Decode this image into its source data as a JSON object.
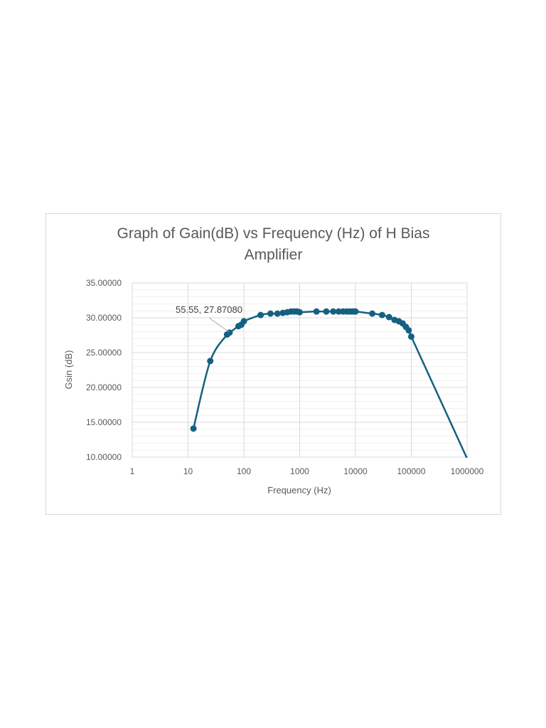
{
  "chart_data": {
    "type": "scatter",
    "title": "Graph of Gain(dB) vs Frequency (Hz) of H Bias Amplifier",
    "title_lines": [
      "Graph of Gain(dB) vs Frequency (Hz) of H Bias",
      "Amplifier"
    ],
    "xlabel": "Frequency (Hz)",
    "ylabel": "Gsin (dB)",
    "x_scale": "log",
    "xlim": [
      1,
      1000000
    ],
    "ylim": [
      10,
      35
    ],
    "x_ticks": [
      "1",
      "10",
      "100",
      "1000",
      "10000",
      "100000",
      "1000000"
    ],
    "y_ticks": [
      "10.00000",
      "15.00000",
      "20.00000",
      "25.00000",
      "30.00000",
      "35.00000"
    ],
    "grid": {
      "major": true,
      "minor_y_step": 1
    },
    "legend": null,
    "series": [
      {
        "name": "Gsin (dB)",
        "color": "#156082",
        "style": "smooth line with markers",
        "x": [
          12.5,
          25,
          50,
          55.55,
          80,
          90,
          100,
          200,
          300,
          400,
          500,
          600,
          700,
          800,
          900,
          1000,
          2000,
          3000,
          4000,
          5000,
          6000,
          7000,
          8000,
          9000,
          10000,
          20000,
          30000,
          40000,
          50000,
          60000,
          70000,
          80000,
          90000,
          100000,
          1000000
        ],
        "values": [
          14.1,
          23.8,
          27.6,
          27.8708,
          28.8,
          29.0,
          29.5,
          30.4,
          30.6,
          30.6,
          30.7,
          30.8,
          30.9,
          30.9,
          30.9,
          30.8,
          30.9,
          30.9,
          30.9,
          30.9,
          30.9,
          30.9,
          30.9,
          30.9,
          30.9,
          30.6,
          30.4,
          30.1,
          29.7,
          29.5,
          29.2,
          28.7,
          28.2,
          27.3,
          9.8
        ]
      }
    ],
    "annotations": [
      {
        "text": "55.55, 27.87080",
        "x": 55.55,
        "y": 27.8708
      }
    ]
  }
}
